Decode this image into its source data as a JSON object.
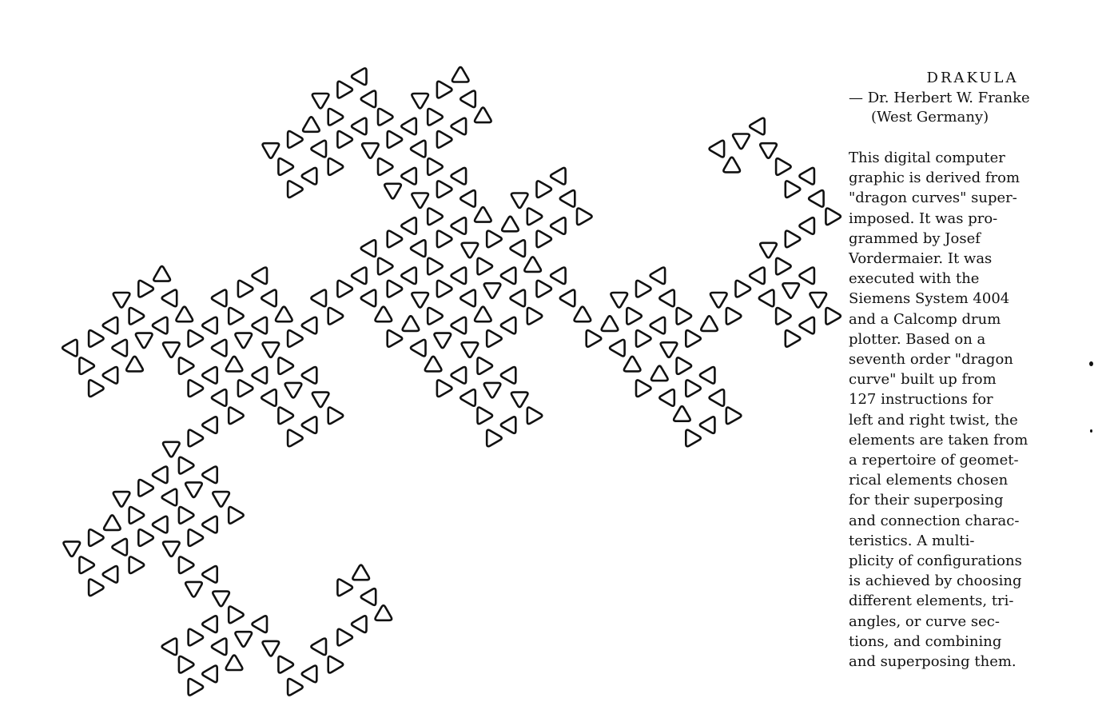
{
  "caption": {
    "title": "DRAKULA",
    "author": "— Dr. Herbert W. Franke",
    "affiliation": "(West Germany)",
    "body_lines": [
      "This digital computer",
      "graphic is derived from",
      "\"dragon curves\" super-",
      "imposed.  It was pro-",
      "grammed by Josef",
      "Vordermaier.  It was",
      "executed with the",
      "Siemens System 4004",
      "and a Calcomp drum",
      "plotter.  Based on a",
      "seventh order \"dragon",
      "curve\" built up from",
      "127 instructions for",
      "left and right twist, the",
      "elements are taken from",
      "a repertoire of geomet-",
      "rical elements chosen",
      "for their superposing",
      "and connection charac-",
      "teristics.  A multi-",
      "plicity of configurations",
      "is achieved by choosing",
      "different elements, tri-",
      "angles, or curve sec-",
      "tions, and combining",
      "and superposing them."
    ]
  },
  "artwork": {
    "ink_color": "#111111",
    "paper_color": "#ffffff",
    "element_shape": "rounded-triangle"
  }
}
